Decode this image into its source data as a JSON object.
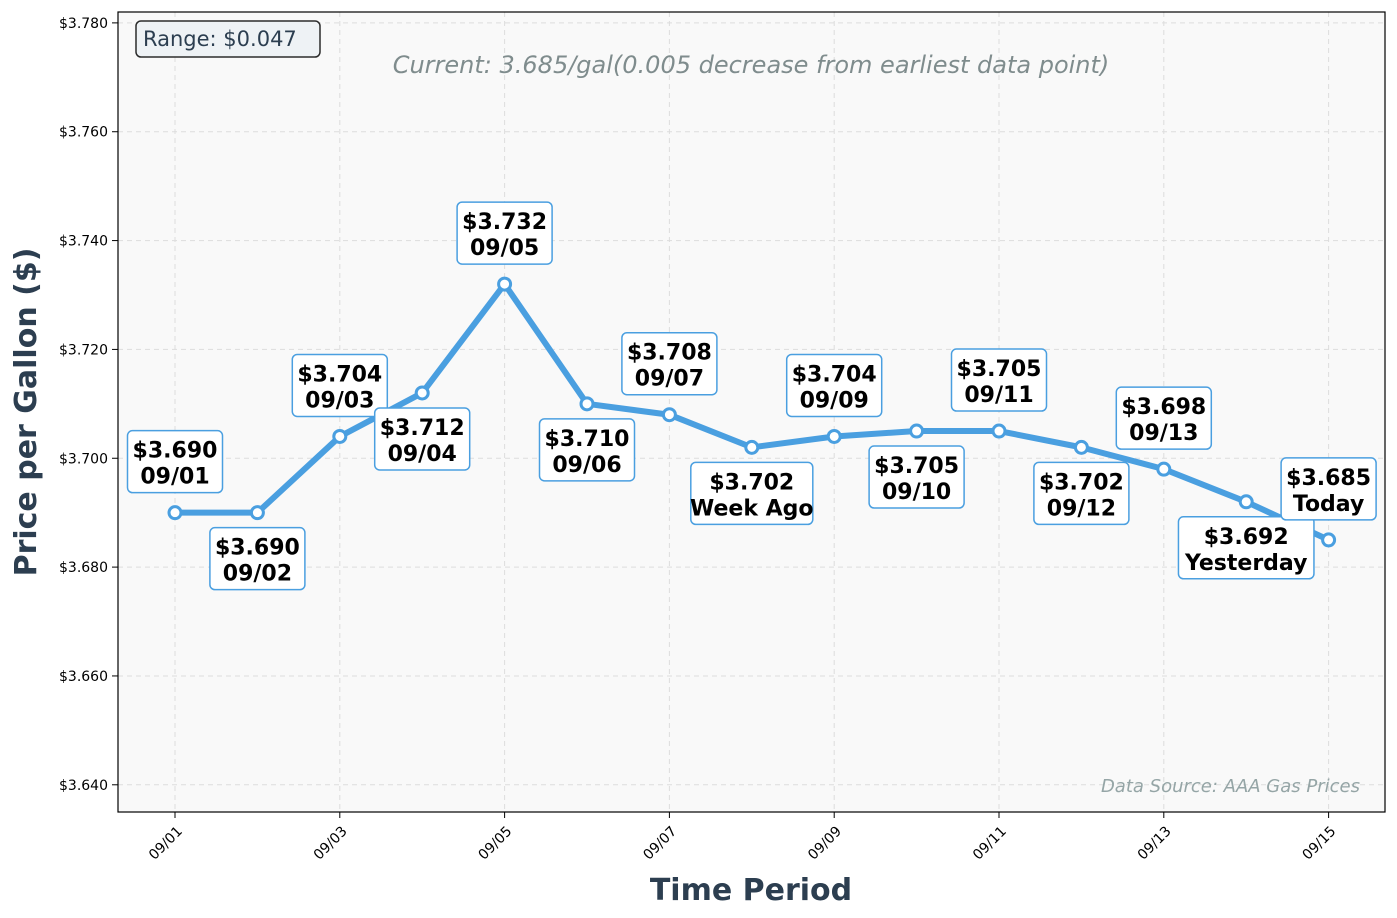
{
  "chart_data": {
    "type": "line",
    "x": [
      "09/01",
      "09/02",
      "09/03",
      "09/04",
      "09/05",
      "09/06",
      "09/07",
      "09/08",
      "09/09",
      "09/10",
      "09/11",
      "09/12",
      "09/13",
      "09/14",
      "09/15"
    ],
    "values": [
      3.69,
      3.69,
      3.704,
      3.712,
      3.732,
      3.71,
      3.708,
      3.702,
      3.704,
      3.705,
      3.705,
      3.702,
      3.698,
      3.692,
      3.685
    ],
    "point_labels": [
      {
        "price": "$3.690",
        "label": "09/01",
        "position": "above"
      },
      {
        "price": "$3.690",
        "label": "09/02",
        "position": "below"
      },
      {
        "price": "$3.704",
        "label": "09/03",
        "position": "above"
      },
      {
        "price": "$3.712",
        "label": "09/04",
        "position": "below"
      },
      {
        "price": "$3.732",
        "label": "09/05",
        "position": "above"
      },
      {
        "price": "$3.710",
        "label": "09/06",
        "position": "below"
      },
      {
        "price": "$3.708",
        "label": "09/07",
        "position": "above"
      },
      {
        "price": "$3.702",
        "label": "Week Ago",
        "position": "below"
      },
      {
        "price": "$3.704",
        "label": "09/09",
        "position": "above"
      },
      {
        "price": "$3.705",
        "label": "09/10",
        "position": "below"
      },
      {
        "price": "$3.705",
        "label": "09/11",
        "position": "above"
      },
      {
        "price": "$3.702",
        "label": "09/12",
        "position": "below"
      },
      {
        "price": "$3.698",
        "label": "09/13",
        "position": "above"
      },
      {
        "price": "$3.692",
        "label": "Yesterday",
        "position": "below"
      },
      {
        "price": "$3.685",
        "label": "Today",
        "position": "above"
      }
    ],
    "x_ticks": [
      "09/01",
      "09/03",
      "09/05",
      "09/07",
      "09/09",
      "09/11",
      "09/13",
      "09/15"
    ],
    "y_ticks": [
      3.64,
      3.66,
      3.68,
      3.7,
      3.72,
      3.74,
      3.76,
      3.78
    ],
    "y_tick_labels": [
      "$3.640",
      "$3.660",
      "$3.680",
      "$3.700",
      "$3.720",
      "$3.740",
      "$3.760",
      "$3.780"
    ],
    "ylim": [
      3.635,
      3.782
    ],
    "xlabel": "Time Period",
    "ylabel": "Price per Gallon ($)",
    "range_box": "Range: $0.047",
    "current_note": "Current: 3.685/gal(0.005 decrease from earliest data point)",
    "source_note": "Data Source: AAA Gas Prices",
    "grid": true,
    "colors": {
      "line": "#4a9fe0",
      "plot_bg": "#f9f9f9",
      "label_border": "#4a9fe0",
      "title": "#2c3e50"
    }
  }
}
